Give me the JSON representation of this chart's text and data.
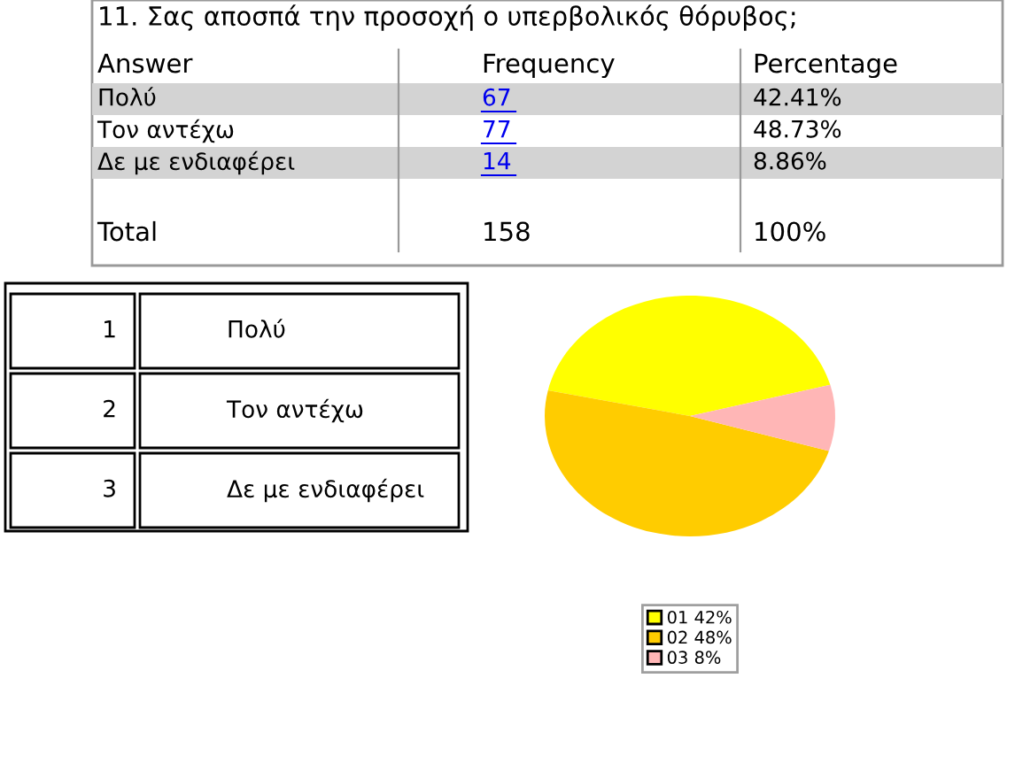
{
  "chart_data": {
    "type": "pie",
    "title": "11. Σας αποσπά την προσοχή ο υπερβολικός θόρυβος;",
    "categories": [
      "01 42%",
      "02 48%",
      "03 8%"
    ],
    "values": [
      42.41,
      48.73,
      8.86
    ],
    "colors": [
      "#ffff00",
      "#ffcc00",
      "#ffb6b6"
    ],
    "legend": "bottom",
    "annotations": [
      "Answer",
      "Frequency",
      "Percentage",
      "Πολύ",
      "67",
      "42.41%",
      "Τον αντέχω",
      "77",
      "48.73%",
      "Δε με ενδιαφέρει",
      "14",
      "8.86%",
      "Total",
      "158",
      "100%",
      "1",
      "Πολύ",
      "2",
      "Τον αντέχω",
      "3",
      "Δε με ενδιαφέρει"
    ]
  }
}
